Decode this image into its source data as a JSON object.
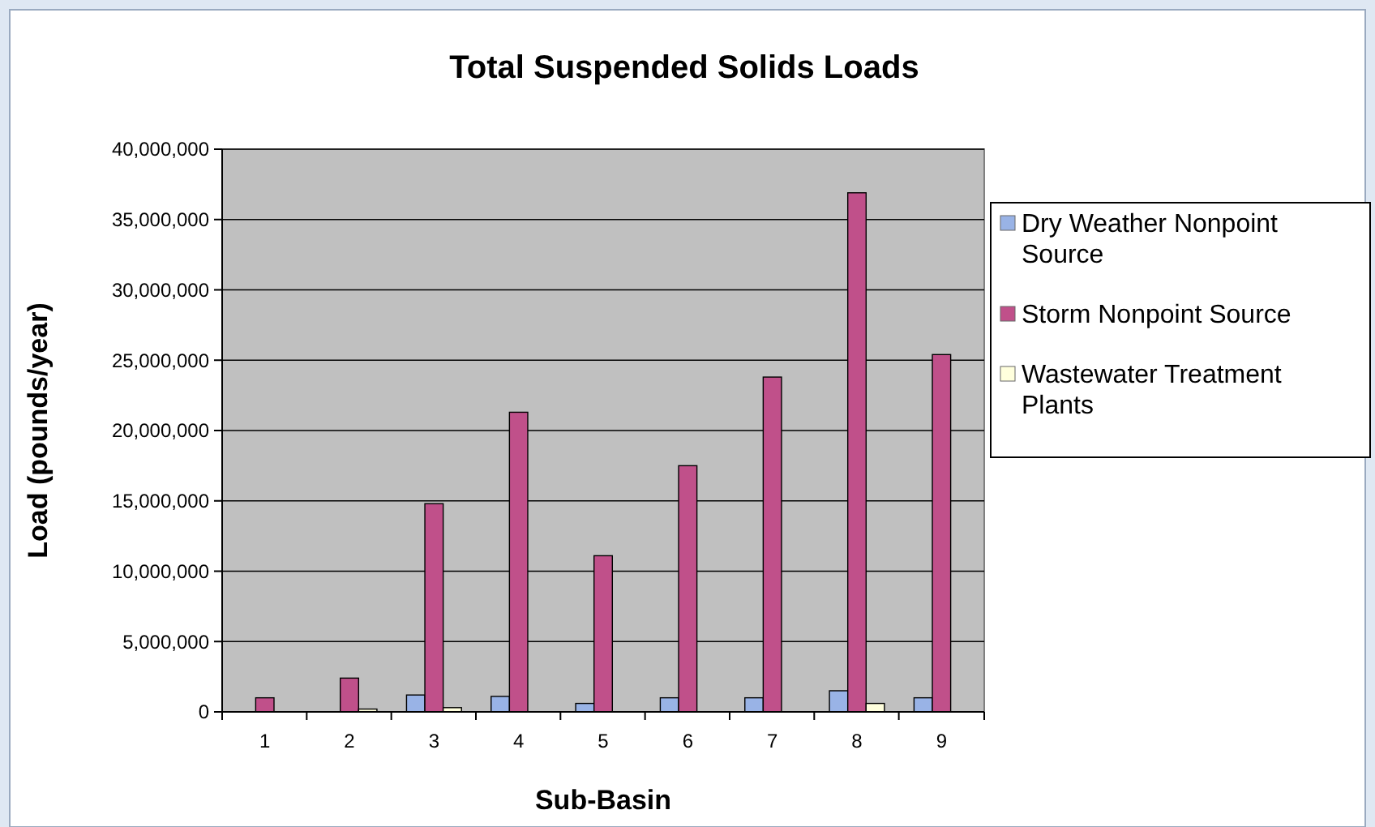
{
  "chart_data": {
    "type": "bar",
    "title": "Total Suspended Solids Loads",
    "xlabel": "Sub-Basin",
    "ylabel": "Load (pounds/year)",
    "categories": [
      "1",
      "2",
      "3",
      "4",
      "5",
      "6",
      "7",
      "8",
      "9"
    ],
    "series": [
      {
        "name": "Dry Weather Nonpoint Source",
        "color": "#99b3e6",
        "values": [
          null,
          null,
          1200000,
          1100000,
          600000,
          1000000,
          1000000,
          1500000,
          1000000
        ]
      },
      {
        "name": "Storm Nonpoint Source",
        "color": "#c0508a",
        "values": [
          1000000,
          2400000,
          14800000,
          21300000,
          11100000,
          17500000,
          23800000,
          36900000,
          25400000
        ]
      },
      {
        "name": "Wastewater Treatment Plants",
        "color": "#ffffdd",
        "values": [
          null,
          200000,
          300000,
          null,
          null,
          null,
          null,
          600000,
          null
        ]
      }
    ],
    "ylim": [
      0,
      40000000
    ],
    "yticks": [
      {
        "value": 0,
        "label": "0"
      },
      {
        "value": 5000000,
        "label": "5,000,000"
      },
      {
        "value": 10000000,
        "label": "10,000,000"
      },
      {
        "value": 15000000,
        "label": "15,000,000"
      },
      {
        "value": 20000000,
        "label": "20,000,000"
      },
      {
        "value": 25000000,
        "label": "25,000,000"
      },
      {
        "value": 30000000,
        "label": "30,000,000"
      },
      {
        "value": 35000000,
        "label": "35,000,000"
      },
      {
        "value": 40000000,
        "label": "40,000,000"
      }
    ],
    "grid": "y",
    "legend": "right"
  }
}
